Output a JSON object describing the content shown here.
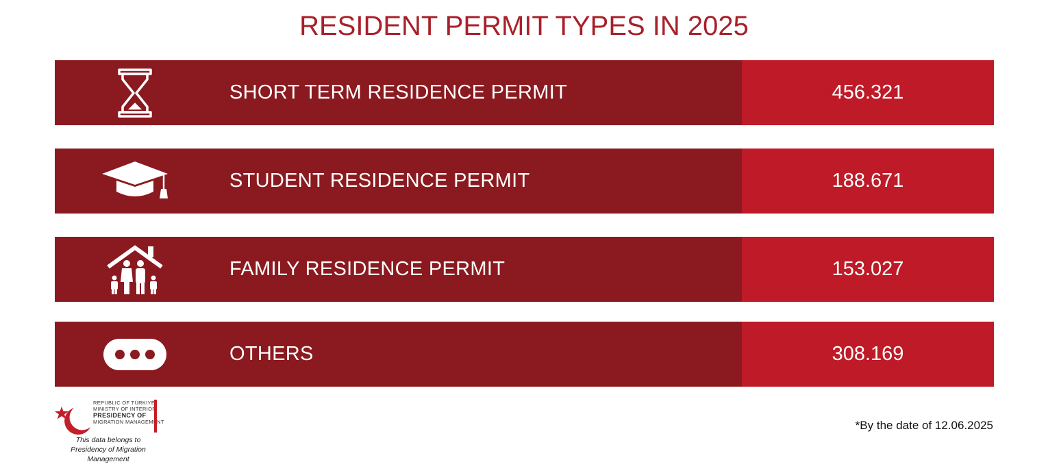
{
  "title": "RESIDENT PERMIT TYPES IN 2025",
  "colors": {
    "title": "#a8202a",
    "label_bg": "#8a1a1f",
    "value_bg": "#be1a27"
  },
  "rows": [
    {
      "icon": "hourglass-icon",
      "label": "SHORT TERM RESIDENCE PERMIT",
      "value": "456.321"
    },
    {
      "icon": "graduation-cap-icon",
      "label": "STUDENT RESIDENCE PERMIT",
      "value": "188.671"
    },
    {
      "icon": "family-house-icon",
      "label": "FAMILY RESIDENCE PERMIT",
      "value": "153.027"
    },
    {
      "icon": "ellipsis-icon",
      "label": "OTHERS",
      "value": "308.169"
    }
  ],
  "logo": {
    "line1": "REPUBLIC OF TÜRKIYE",
    "line2": "MINISTRY OF INTERIOR",
    "line3": "PRESIDENCY OF",
    "line4": "MIGRATION MANAGEMENT"
  },
  "caption_line1": "This data belongs to",
  "caption_line2": "Presidency of Migration Management",
  "footnote": "*By the date of 12.06.2025"
}
